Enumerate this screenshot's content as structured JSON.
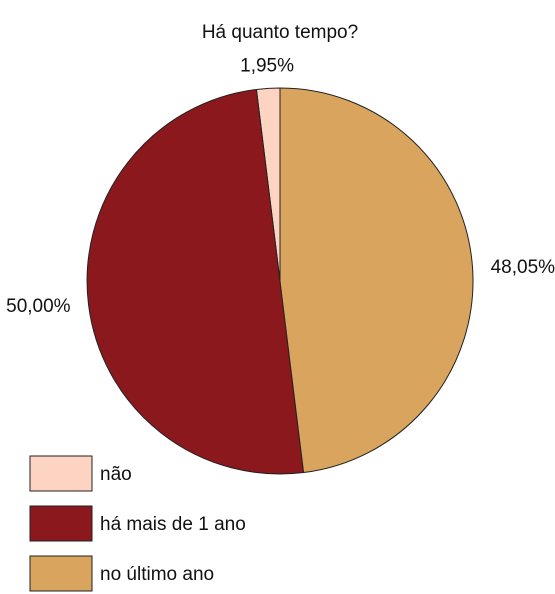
{
  "chart_data": {
    "type": "pie",
    "title": "Há quanto tempo?",
    "categories": [
      "não",
      "há mais de 1 ano",
      "no último ano"
    ],
    "values": [
      1.95,
      50.0,
      48.05
    ],
    "value_labels": [
      "1,95%",
      "50,00%",
      "48,05%"
    ],
    "colors": [
      "#fdd3c2",
      "#8b181d",
      "#d9a45d"
    ],
    "startangle": 90,
    "counterclock": true,
    "legend": "lower left"
  }
}
